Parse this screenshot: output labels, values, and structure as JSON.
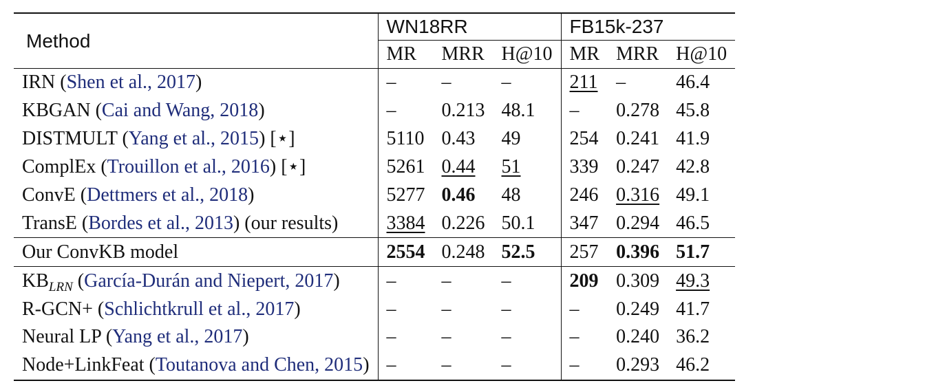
{
  "header": {
    "method_label": "Method",
    "groups": [
      "WN18RR",
      "FB15k-237"
    ],
    "metrics": [
      "MR",
      "MRR",
      "H@10",
      "MR",
      "MRR",
      "H@10"
    ]
  },
  "sections": [
    {
      "rows": [
        {
          "name": "IRN",
          "cite": "Shen et al., 2017",
          "suffix": "",
          "cells": [
            {
              "v": "–"
            },
            {
              "v": "–"
            },
            {
              "v": "–"
            },
            {
              "v": "211",
              "u": true
            },
            {
              "v": "–"
            },
            {
              "v": "46.4"
            }
          ]
        },
        {
          "name": "KBGAN",
          "cite": "Cai and Wang, 2018",
          "suffix": "",
          "cells": [
            {
              "v": "–"
            },
            {
              "v": "0.213"
            },
            {
              "v": "48.1"
            },
            {
              "v": "–"
            },
            {
              "v": "0.278"
            },
            {
              "v": "45.8"
            }
          ]
        },
        {
          "name": "DISTMULT",
          "cite": "Yang et al., 2015",
          "suffix": "[⋆]",
          "cells": [
            {
              "v": "5110"
            },
            {
              "v": "0.43"
            },
            {
              "v": "49"
            },
            {
              "v": "254"
            },
            {
              "v": "0.241"
            },
            {
              "v": "41.9"
            }
          ]
        },
        {
          "name": "ComplEx",
          "cite": "Trouillon et al., 2016",
          "suffix": "[⋆]",
          "cells": [
            {
              "v": "5261"
            },
            {
              "v": "0.44",
              "u": true
            },
            {
              "v": "51",
              "u": true
            },
            {
              "v": "339"
            },
            {
              "v": "0.247"
            },
            {
              "v": "42.8"
            }
          ]
        },
        {
          "name": "ConvE",
          "cite": "Dettmers et al., 2018",
          "suffix": "",
          "cells": [
            {
              "v": "5277"
            },
            {
              "v": "0.46",
              "b": true
            },
            {
              "v": "48"
            },
            {
              "v": "246"
            },
            {
              "v": "0.316",
              "u": true
            },
            {
              "v": "49.1"
            }
          ]
        },
        {
          "name": "TransE",
          "cite": "Bordes et al., 2013",
          "suffix": "(our results)",
          "cells": [
            {
              "v": "3384",
              "u": true
            },
            {
              "v": "0.226"
            },
            {
              "v": "50.1"
            },
            {
              "v": "347"
            },
            {
              "v": "0.294"
            },
            {
              "v": "46.5"
            }
          ]
        }
      ]
    },
    {
      "rows": [
        {
          "name": "Our ConvKB model",
          "cite": "",
          "suffix": "",
          "cells": [
            {
              "v": "2554",
              "b": true
            },
            {
              "v": "0.248"
            },
            {
              "v": "52.5",
              "b": true
            },
            {
              "v": "257"
            },
            {
              "v": "0.396",
              "b": true
            },
            {
              "v": "51.7",
              "b": true
            }
          ]
        }
      ]
    },
    {
      "rows": [
        {
          "name": "KB",
          "sub": "LRN",
          "cite": "García-Durán and Niepert, 2017",
          "suffix": "",
          "cells": [
            {
              "v": "–"
            },
            {
              "v": "–"
            },
            {
              "v": "–"
            },
            {
              "v": "209",
              "b": true
            },
            {
              "v": "0.309"
            },
            {
              "v": "49.3",
              "u": true
            }
          ]
        },
        {
          "name": "R-GCN+",
          "cite": "Schlichtkrull et al., 2017",
          "suffix": "",
          "cells": [
            {
              "v": "–"
            },
            {
              "v": "–"
            },
            {
              "v": "–"
            },
            {
              "v": "–"
            },
            {
              "v": "0.249"
            },
            {
              "v": "41.7"
            }
          ]
        },
        {
          "name": "Neural LP",
          "cite": "Yang et al., 2017",
          "suffix": "",
          "cells": [
            {
              "v": "–"
            },
            {
              "v": "–"
            },
            {
              "v": "–"
            },
            {
              "v": "–"
            },
            {
              "v": "0.240"
            },
            {
              "v": "36.2"
            }
          ]
        },
        {
          "name": "Node+LinkFeat",
          "cite": "Toutanova and Chen, 2015",
          "suffix": "",
          "cells": [
            {
              "v": "–"
            },
            {
              "v": "–"
            },
            {
              "v": "–"
            },
            {
              "v": "–"
            },
            {
              "v": "0.293"
            },
            {
              "v": "46.2"
            }
          ]
        }
      ]
    }
  ]
}
